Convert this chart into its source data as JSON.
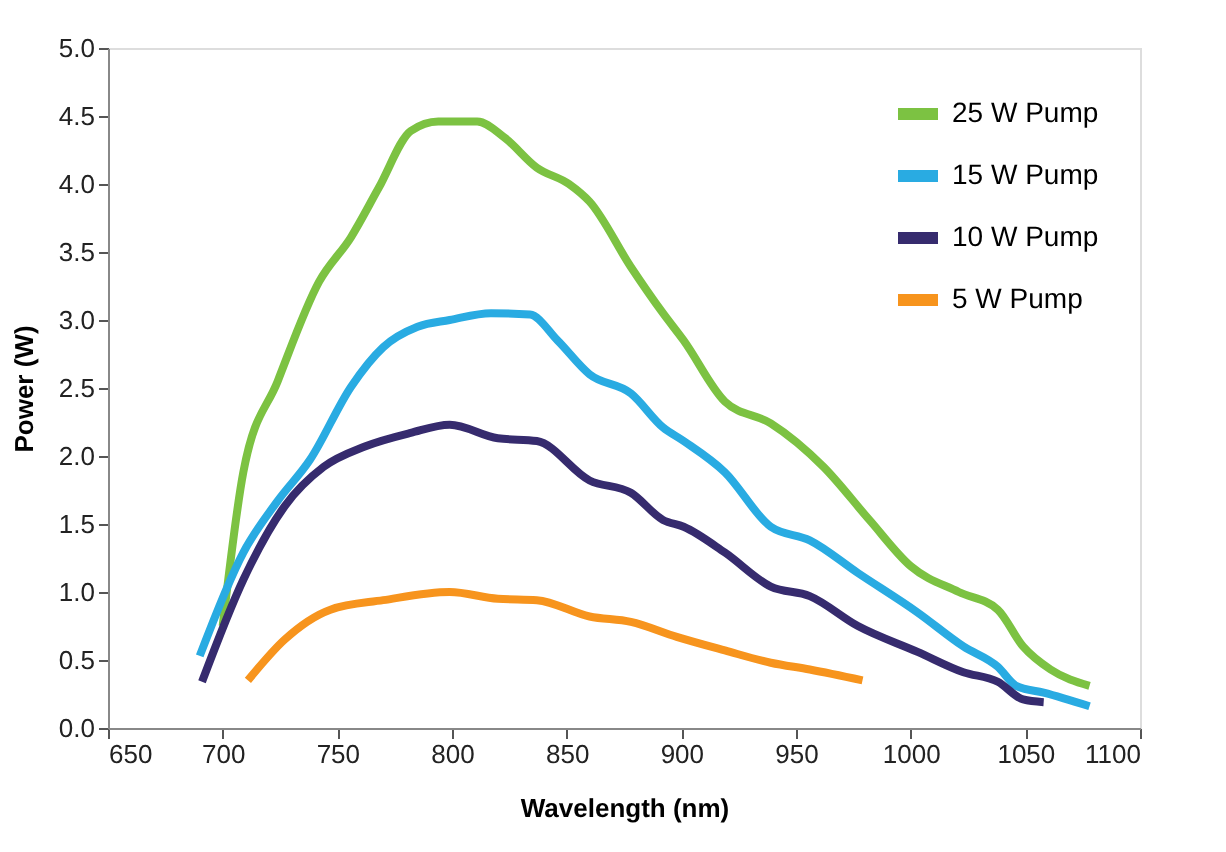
{
  "chart_data": {
    "type": "line",
    "xlabel": "Wavelength (nm)",
    "ylabel": "Power (W)",
    "xlim": [
      650,
      1100
    ],
    "xticks": [
      650,
      700,
      750,
      800,
      850,
      900,
      950,
      1000,
      1050,
      1100
    ],
    "ylim": [
      0,
      5
    ],
    "yticks": [
      {
        "value": 0,
        "label": "0.0"
      },
      {
        "value": 0.5,
        "label": "0.5"
      },
      {
        "value": 1,
        "label": "1.0"
      },
      {
        "value": 1.5,
        "label": "1.5"
      },
      {
        "value": 2,
        "label": "2.0"
      },
      {
        "value": 2.5,
        "label": "2.5"
      },
      {
        "value": 3,
        "label": "3.0"
      },
      {
        "value": 3.5,
        "label": "3.5"
      },
      {
        "value": 4,
        "label": "4.0"
      },
      {
        "value": 4.5,
        "label": "4.5"
      },
      {
        "value": 5,
        "label": "5.0"
      }
    ],
    "grid": false,
    "legend": "top right",
    "marker": "none",
    "line_style": "solid",
    "series": [
      {
        "name": "25 W Pump",
        "color": "#7cc242",
        "x": [
          700,
          709,
          724,
          742,
          756,
          768,
          782,
          794,
          811,
          823,
          837,
          851,
          860,
          878,
          892,
          901,
          919,
          939,
          962,
          982,
          1000,
          1021,
          1038,
          1049,
          1061,
          1078
        ],
        "values": [
          0.75,
          1.88,
          2.55,
          3.28,
          3.61,
          3.97,
          4.39,
          4.46,
          4.46,
          4.34,
          4.12,
          4.0,
          3.87,
          3.39,
          3.05,
          2.85,
          2.4,
          2.24,
          1.92,
          1.53,
          1.19,
          1.0,
          0.87,
          0.6,
          0.43,
          0.31
        ]
      },
      {
        "name": "15 W Pump",
        "color": "#29abe2",
        "x": [
          690,
          709,
          724,
          738,
          756,
          770,
          785,
          799,
          817,
          834,
          846,
          860,
          878,
          892,
          901,
          919,
          939,
          956,
          977,
          1003,
          1023,
          1038,
          1046,
          1058,
          1078
        ],
        "values": [
          0.53,
          1.29,
          1.67,
          1.97,
          2.51,
          2.8,
          2.95,
          3.0,
          3.05,
          3.04,
          2.85,
          2.6,
          2.46,
          2.21,
          2.11,
          1.88,
          1.48,
          1.38,
          1.14,
          0.85,
          0.6,
          0.45,
          0.31,
          0.26,
          0.16
        ]
      },
      {
        "name": "10 W Pump",
        "color": "#362b6e",
        "x": [
          691,
          709,
          727,
          744,
          762,
          782,
          799,
          820,
          837,
          860,
          878,
          892,
          901,
          919,
          939,
          956,
          977,
          1003,
          1023,
          1038,
          1049,
          1058
        ],
        "values": [
          0.34,
          1.09,
          1.63,
          1.92,
          2.07,
          2.17,
          2.23,
          2.13,
          2.11,
          1.82,
          1.73,
          1.53,
          1.48,
          1.29,
          1.04,
          0.97,
          0.75,
          0.56,
          0.41,
          0.34,
          0.21,
          0.19
        ]
      },
      {
        "name": "5 W Pump",
        "color": "#f7941d",
        "x": [
          711,
          727,
          747,
          770,
          799,
          820,
          837,
          860,
          878,
          898,
          919,
          939,
          956,
          979
        ],
        "values": [
          0.35,
          0.65,
          0.87,
          0.94,
          1.0,
          0.95,
          0.94,
          0.82,
          0.78,
          0.67,
          0.57,
          0.48,
          0.43,
          0.35
        ]
      }
    ]
  }
}
